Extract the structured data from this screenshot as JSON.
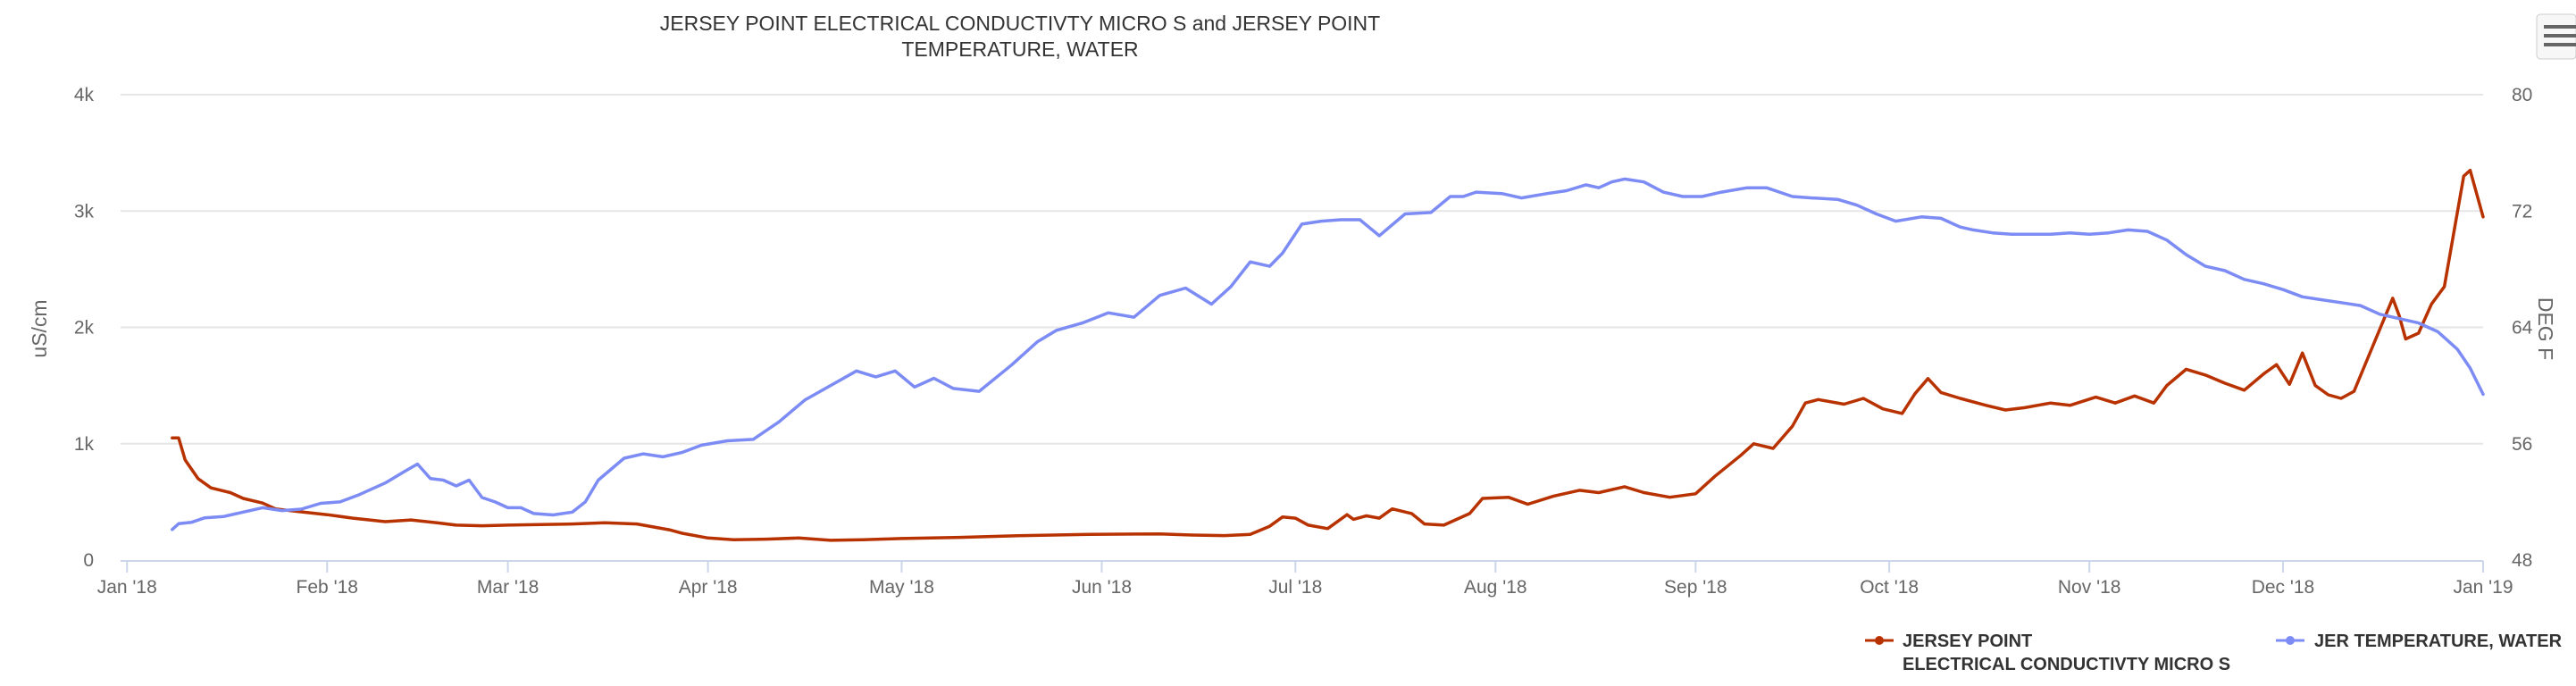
{
  "chart_data": {
    "type": "line",
    "title_lines": [
      "JERSEY POINT ELECTRICAL CONDUCTIVTY MICRO S and JERSEY POINT",
      "TEMPERATURE, WATER"
    ],
    "x_axis": {
      "type": "date",
      "range": [
        "2017-12-31",
        "2019-01-01"
      ],
      "ticks": [
        {
          "label": "Jan '18",
          "date": "2018-01-01"
        },
        {
          "label": "Feb '18",
          "date": "2018-02-01"
        },
        {
          "label": "Mar '18",
          "date": "2018-03-01"
        },
        {
          "label": "Apr '18",
          "date": "2018-04-01"
        },
        {
          "label": "May '18",
          "date": "2018-05-01"
        },
        {
          "label": "Jun '18",
          "date": "2018-06-01"
        },
        {
          "label": "Jul '18",
          "date": "2018-07-01"
        },
        {
          "label": "Aug '18",
          "date": "2018-08-01"
        },
        {
          "label": "Sep '18",
          "date": "2018-09-01"
        },
        {
          "label": "Oct '18",
          "date": "2018-10-01"
        },
        {
          "label": "Nov '18",
          "date": "2018-11-01"
        },
        {
          "label": "Dec '18",
          "date": "2018-12-01"
        },
        {
          "label": "Jan '19",
          "date": "2019-01-01"
        }
      ]
    },
    "y_axis_left": {
      "label": "uS/cm",
      "range": [
        0,
        4000
      ],
      "ticks": [
        {
          "value": 0,
          "label": "0"
        },
        {
          "value": 1000,
          "label": "1k"
        },
        {
          "value": 2000,
          "label": "2k"
        },
        {
          "value": 3000,
          "label": "3k"
        },
        {
          "value": 4000,
          "label": "4k"
        }
      ]
    },
    "y_axis_right": {
      "label": "DEG F",
      "range": [
        48,
        80
      ],
      "ticks": [
        {
          "value": 48,
          "label": "48"
        },
        {
          "value": 56,
          "label": "56"
        },
        {
          "value": 64,
          "label": "64"
        },
        {
          "value": 72,
          "label": "72"
        },
        {
          "value": 80,
          "label": "80"
        }
      ]
    },
    "grid": true,
    "legend_position": "bottom-right",
    "series": [
      {
        "name_lines": [
          "JERSEY POINT",
          "ELECTRICAL CONDUCTIVTY MICRO S"
        ],
        "axis": "left",
        "color": "#b83200",
        "points": [
          [
            "2018-01-08",
            1050
          ],
          [
            "2018-01-09",
            1050
          ],
          [
            "2018-01-10",
            860
          ],
          [
            "2018-01-12",
            700
          ],
          [
            "2018-01-14",
            620
          ],
          [
            "2018-01-17",
            580
          ],
          [
            "2018-01-19",
            530
          ],
          [
            "2018-01-22",
            490
          ],
          [
            "2018-01-24",
            440
          ],
          [
            "2018-01-27",
            420
          ],
          [
            "2018-02-01",
            390
          ],
          [
            "2018-02-05",
            360
          ],
          [
            "2018-02-10",
            330
          ],
          [
            "2018-02-14",
            345
          ],
          [
            "2018-02-18",
            320
          ],
          [
            "2018-02-21",
            300
          ],
          [
            "2018-02-25",
            295
          ],
          [
            "2018-03-01",
            300
          ],
          [
            "2018-03-06",
            305
          ],
          [
            "2018-03-11",
            310
          ],
          [
            "2018-03-16",
            320
          ],
          [
            "2018-03-21",
            310
          ],
          [
            "2018-03-26",
            260
          ],
          [
            "2018-03-28",
            230
          ],
          [
            "2018-04-01",
            190
          ],
          [
            "2018-04-05",
            175
          ],
          [
            "2018-04-10",
            180
          ],
          [
            "2018-04-15",
            190
          ],
          [
            "2018-04-20",
            170
          ],
          [
            "2018-04-25",
            175
          ],
          [
            "2018-05-01",
            185
          ],
          [
            "2018-05-10",
            195
          ],
          [
            "2018-05-20",
            210
          ],
          [
            "2018-05-30",
            220
          ],
          [
            "2018-06-10",
            225
          ],
          [
            "2018-06-15",
            215
          ],
          [
            "2018-06-20",
            210
          ],
          [
            "2018-06-24",
            220
          ],
          [
            "2018-06-27",
            290
          ],
          [
            "2018-06-29",
            370
          ],
          [
            "2018-07-01",
            360
          ],
          [
            "2018-07-03",
            300
          ],
          [
            "2018-07-06",
            270
          ],
          [
            "2018-07-09",
            390
          ],
          [
            "2018-07-10",
            350
          ],
          [
            "2018-07-12",
            380
          ],
          [
            "2018-07-14",
            360
          ],
          [
            "2018-07-16",
            440
          ],
          [
            "2018-07-19",
            400
          ],
          [
            "2018-07-21",
            310
          ],
          [
            "2018-07-24",
            300
          ],
          [
            "2018-07-28",
            400
          ],
          [
            "2018-07-30",
            530
          ],
          [
            "2018-08-03",
            540
          ],
          [
            "2018-08-06",
            480
          ],
          [
            "2018-08-10",
            550
          ],
          [
            "2018-08-14",
            600
          ],
          [
            "2018-08-17",
            580
          ],
          [
            "2018-08-21",
            630
          ],
          [
            "2018-08-24",
            580
          ],
          [
            "2018-08-28",
            540
          ],
          [
            "2018-09-01",
            570
          ],
          [
            "2018-09-04",
            720
          ],
          [
            "2018-09-08",
            900
          ],
          [
            "2018-09-10",
            1000
          ],
          [
            "2018-09-13",
            960
          ],
          [
            "2018-09-16",
            1150
          ],
          [
            "2018-09-18",
            1350
          ],
          [
            "2018-09-20",
            1380
          ],
          [
            "2018-09-24",
            1340
          ],
          [
            "2018-09-27",
            1390
          ],
          [
            "2018-09-30",
            1300
          ],
          [
            "2018-10-03",
            1260
          ],
          [
            "2018-10-05",
            1430
          ],
          [
            "2018-10-07",
            1560
          ],
          [
            "2018-10-09",
            1440
          ],
          [
            "2018-10-12",
            1390
          ],
          [
            "2018-10-16",
            1330
          ],
          [
            "2018-10-19",
            1290
          ],
          [
            "2018-10-22",
            1310
          ],
          [
            "2018-10-26",
            1350
          ],
          [
            "2018-10-29",
            1330
          ],
          [
            "2018-11-02",
            1400
          ],
          [
            "2018-11-05",
            1350
          ],
          [
            "2018-11-08",
            1410
          ],
          [
            "2018-11-11",
            1350
          ],
          [
            "2018-11-13",
            1500
          ],
          [
            "2018-11-16",
            1640
          ],
          [
            "2018-11-19",
            1590
          ],
          [
            "2018-11-22",
            1520
          ],
          [
            "2018-11-25",
            1460
          ],
          [
            "2018-11-28",
            1600
          ],
          [
            "2018-11-30",
            1680
          ],
          [
            "2018-12-02",
            1510
          ],
          [
            "2018-12-04",
            1780
          ],
          [
            "2018-12-06",
            1500
          ],
          [
            "2018-12-08",
            1420
          ],
          [
            "2018-12-10",
            1390
          ],
          [
            "2018-12-12",
            1450
          ],
          [
            "2018-12-15",
            1850
          ],
          [
            "2018-12-18",
            2250
          ],
          [
            "2018-12-19",
            2100
          ],
          [
            "2018-12-20",
            1900
          ],
          [
            "2018-12-22",
            1950
          ],
          [
            "2018-12-24",
            2200
          ],
          [
            "2018-12-26",
            2350
          ],
          [
            "2018-12-29",
            3300
          ],
          [
            "2018-12-30",
            3350
          ],
          [
            "2019-01-01",
            2950
          ]
        ]
      },
      {
        "name_lines": [
          "JER TEMPERATURE, WATER"
        ],
        "axis": "right",
        "color": "#7c8cf4",
        "points": [
          [
            "2018-01-08",
            50.1
          ],
          [
            "2018-01-09",
            50.5
          ],
          [
            "2018-01-11",
            50.6
          ],
          [
            "2018-01-13",
            50.9
          ],
          [
            "2018-01-16",
            51.0
          ],
          [
            "2018-01-19",
            51.3
          ],
          [
            "2018-01-22",
            51.6
          ],
          [
            "2018-01-25",
            51.4
          ],
          [
            "2018-01-28",
            51.5
          ],
          [
            "2018-01-31",
            51.9
          ],
          [
            "2018-02-03",
            52.0
          ],
          [
            "2018-02-06",
            52.5
          ],
          [
            "2018-02-10",
            53.3
          ],
          [
            "2018-02-13",
            54.1
          ],
          [
            "2018-02-15",
            54.6
          ],
          [
            "2018-02-17",
            53.6
          ],
          [
            "2018-02-19",
            53.5
          ],
          [
            "2018-02-21",
            53.1
          ],
          [
            "2018-02-23",
            53.5
          ],
          [
            "2018-02-25",
            52.3
          ],
          [
            "2018-02-27",
            52.0
          ],
          [
            "2018-03-01",
            51.6
          ],
          [
            "2018-03-03",
            51.6
          ],
          [
            "2018-03-05",
            51.2
          ],
          [
            "2018-03-08",
            51.1
          ],
          [
            "2018-03-11",
            51.3
          ],
          [
            "2018-03-13",
            52.0
          ],
          [
            "2018-03-15",
            53.5
          ],
          [
            "2018-03-19",
            55.0
          ],
          [
            "2018-03-22",
            55.3
          ],
          [
            "2018-03-25",
            55.1
          ],
          [
            "2018-03-28",
            55.4
          ],
          [
            "2018-03-31",
            55.9
          ],
          [
            "2018-04-04",
            56.2
          ],
          [
            "2018-04-08",
            56.3
          ],
          [
            "2018-04-12",
            57.5
          ],
          [
            "2018-04-16",
            59.0
          ],
          [
            "2018-04-20",
            60.0
          ],
          [
            "2018-04-24",
            61.0
          ],
          [
            "2018-04-27",
            60.6
          ],
          [
            "2018-04-30",
            61.0
          ],
          [
            "2018-05-03",
            59.9
          ],
          [
            "2018-05-06",
            60.5
          ],
          [
            "2018-05-09",
            59.8
          ],
          [
            "2018-05-13",
            59.6
          ],
          [
            "2018-05-18",
            61.4
          ],
          [
            "2018-05-22",
            63.0
          ],
          [
            "2018-05-25",
            63.8
          ],
          [
            "2018-05-29",
            64.3
          ],
          [
            "2018-06-02",
            65.0
          ],
          [
            "2018-06-06",
            64.7
          ],
          [
            "2018-06-10",
            66.2
          ],
          [
            "2018-06-14",
            66.7
          ],
          [
            "2018-06-18",
            65.6
          ],
          [
            "2018-06-21",
            66.8
          ],
          [
            "2018-06-24",
            68.5
          ],
          [
            "2018-06-27",
            68.2
          ],
          [
            "2018-06-29",
            69.1
          ],
          [
            "2018-07-02",
            71.1
          ],
          [
            "2018-07-05",
            71.3
          ],
          [
            "2018-07-08",
            71.4
          ],
          [
            "2018-07-11",
            71.4
          ],
          [
            "2018-07-14",
            70.3
          ],
          [
            "2018-07-18",
            71.8
          ],
          [
            "2018-07-22",
            71.9
          ],
          [
            "2018-07-25",
            73.0
          ],
          [
            "2018-07-27",
            73.0
          ],
          [
            "2018-07-29",
            73.3
          ],
          [
            "2018-08-02",
            73.2
          ],
          [
            "2018-08-05",
            72.9
          ],
          [
            "2018-08-09",
            73.2
          ],
          [
            "2018-08-12",
            73.4
          ],
          [
            "2018-08-15",
            73.8
          ],
          [
            "2018-08-17",
            73.6
          ],
          [
            "2018-08-19",
            74.0
          ],
          [
            "2018-08-21",
            74.2
          ],
          [
            "2018-08-24",
            74.0
          ],
          [
            "2018-08-27",
            73.3
          ],
          [
            "2018-08-30",
            73.0
          ],
          [
            "2018-09-02",
            73.0
          ],
          [
            "2018-09-05",
            73.3
          ],
          [
            "2018-09-09",
            73.6
          ],
          [
            "2018-09-12",
            73.6
          ],
          [
            "2018-09-16",
            73.0
          ],
          [
            "2018-09-19",
            72.9
          ],
          [
            "2018-09-23",
            72.8
          ],
          [
            "2018-09-26",
            72.4
          ],
          [
            "2018-09-29",
            71.8
          ],
          [
            "2018-10-02",
            71.3
          ],
          [
            "2018-10-06",
            71.6
          ],
          [
            "2018-10-09",
            71.5
          ],
          [
            "2018-10-12",
            70.9
          ],
          [
            "2018-10-14",
            70.7
          ],
          [
            "2018-10-17",
            70.5
          ],
          [
            "2018-10-20",
            70.4
          ],
          [
            "2018-10-23",
            70.4
          ],
          [
            "2018-10-26",
            70.4
          ],
          [
            "2018-10-29",
            70.5
          ],
          [
            "2018-11-01",
            70.4
          ],
          [
            "2018-11-04",
            70.5
          ],
          [
            "2018-11-07",
            70.7
          ],
          [
            "2018-11-10",
            70.6
          ],
          [
            "2018-11-13",
            70.0
          ],
          [
            "2018-11-16",
            69.0
          ],
          [
            "2018-11-19",
            68.2
          ],
          [
            "2018-11-22",
            67.9
          ],
          [
            "2018-11-25",
            67.3
          ],
          [
            "2018-11-28",
            67.0
          ],
          [
            "2018-12-01",
            66.6
          ],
          [
            "2018-12-04",
            66.1
          ],
          [
            "2018-12-07",
            65.9
          ],
          [
            "2018-12-10",
            65.7
          ],
          [
            "2018-12-13",
            65.5
          ],
          [
            "2018-12-16",
            64.9
          ],
          [
            "2018-12-19",
            64.6
          ],
          [
            "2018-12-22",
            64.3
          ],
          [
            "2018-12-25",
            63.7
          ],
          [
            "2018-12-28",
            62.5
          ],
          [
            "2018-12-30",
            61.2
          ],
          [
            "2019-01-01",
            59.4
          ]
        ]
      }
    ]
  }
}
